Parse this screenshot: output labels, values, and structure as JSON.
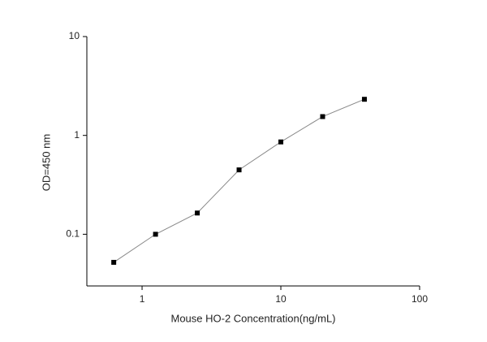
{
  "chart_data": {
    "type": "line",
    "x_label": "Mouse HO-2 Concentration(ng/mL)",
    "y_label": "OD=450 nm",
    "x": [
      0.625,
      1.25,
      2.5,
      5,
      10,
      20,
      40
    ],
    "series": [
      {
        "color": "#000000",
        "line_color": "#888888",
        "values": [
          0.052,
          0.1,
          0.164,
          0.448,
          0.859,
          1.55,
          2.32
        ]
      }
    ],
    "xlim": [
      0.4,
      100
    ],
    "ylim": [
      0.03,
      10
    ],
    "xticks": [
      1,
      10,
      100
    ],
    "yticks": [
      0.1,
      1,
      10
    ],
    "xlog": true,
    "ylog": true,
    "grid": false
  }
}
